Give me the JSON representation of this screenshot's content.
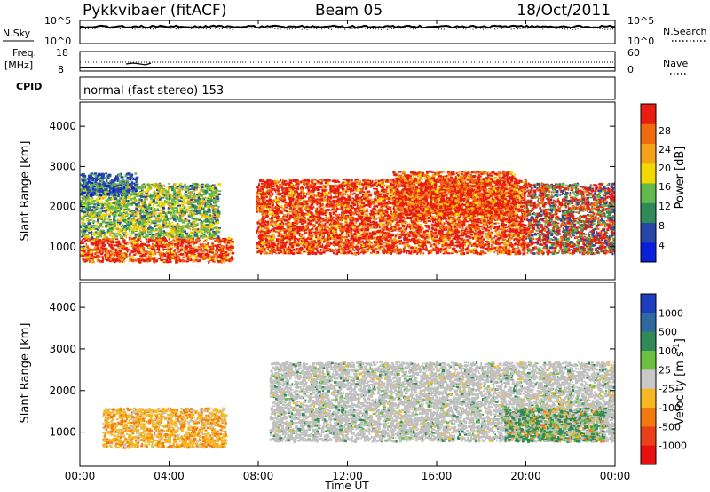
{
  "header": {
    "station": "Pykkvibaer (fitACF)",
    "beam": "Beam 05",
    "date": "18/Oct/2011"
  },
  "top_panels": {
    "nsky_label": "N.Sky",
    "nsky_ticks": [
      "10^5",
      "10^0"
    ],
    "nsearch_label": "N.Search",
    "nsearch_ticks": [
      "10^5",
      "10^0"
    ],
    "freq_label": "Freq.",
    "freq_unit": "[MHz]",
    "freq_ticks": [
      "18",
      "8"
    ],
    "nave_label": "Nave",
    "nave_ticks": [
      "60",
      "0"
    ],
    "cpid_label": "CPID",
    "cpid_text": "normal (fast stereo) 153"
  },
  "chart_data": [
    {
      "type": "heatmap",
      "name": "Power",
      "ylabel": "Slant Range [km]",
      "xlabel": "",
      "ylim": [
        180,
        4600
      ],
      "xlim": [
        0,
        24
      ],
      "y_ticks": [
        "1000",
        "2000",
        "3000",
        "4000"
      ],
      "y_tick_values": [
        1000,
        2000,
        3000,
        4000
      ],
      "colorbar": {
        "label": "Power [dB]",
        "ticks": [
          "28",
          "24",
          "20",
          "16",
          "12",
          "8",
          "4"
        ],
        "colors_low_to_high": [
          "#0a1fd9",
          "#2846a8",
          "#2f8a58",
          "#63b84e",
          "#f0d800",
          "#f3a21a",
          "#f06a10",
          "#e81c10"
        ]
      },
      "echo_regions": [
        {
          "t": [
            0.0,
            6.8
          ],
          "range": [
            650,
            1250
          ],
          "level": "high"
        },
        {
          "t": [
            0.0,
            6.2
          ],
          "range": [
            1250,
            2600
          ],
          "level": "medium"
        },
        {
          "t": [
            0.0,
            2.5
          ],
          "range": [
            2300,
            2850
          ],
          "level": "low"
        },
        {
          "t": [
            7.9,
            20.0
          ],
          "range": [
            850,
            2700
          ],
          "level": "high"
        },
        {
          "t": [
            14.0,
            19.5
          ],
          "range": [
            1800,
            2900
          ],
          "level": "high"
        },
        {
          "t": [
            20.0,
            24.0
          ],
          "range": [
            850,
            2600
          ],
          "level": "mixed"
        }
      ]
    },
    {
      "type": "heatmap",
      "name": "Velocity",
      "ylabel": "Slant Range [km]",
      "xlabel": "Time UT",
      "ylim": [
        180,
        4600
      ],
      "xlim": [
        0,
        24
      ],
      "y_ticks": [
        "1000",
        "2000",
        "3000",
        "4000"
      ],
      "y_tick_values": [
        1000,
        2000,
        3000,
        4000
      ],
      "x_ticks": [
        "00:00",
        "04:00",
        "08:00",
        "12:00",
        "16:00",
        "20:00",
        "00:00"
      ],
      "x_tick_values": [
        0,
        4,
        8,
        12,
        16,
        20,
        24
      ],
      "colorbar": {
        "label": "Velocity [m s^-1]",
        "label_main": "Velocity",
        "label_unit": "[m s",
        "label_exp": "-1",
        "label_close": "]",
        "ticks": [
          "1000",
          "500",
          "100",
          "25",
          "-25",
          "-100",
          "-500",
          "-1000"
        ],
        "colors_high_to_low": [
          "#1d3fbf",
          "#2e6a9f",
          "#2f8a58",
          "#6cc040",
          "#c8c8c8",
          "#f5b820",
          "#f37a10",
          "#e8401a",
          "#e81010"
        ]
      },
      "ground_scatter_color": "#c0c0c0",
      "echo_regions": [
        {
          "t": [
            1.0,
            6.5
          ],
          "range": [
            650,
            1600
          ],
          "level": "away"
        },
        {
          "t": [
            8.5,
            24.0
          ],
          "range": [
            800,
            2700
          ],
          "level": "ground"
        },
        {
          "t": [
            19.0,
            23.5
          ],
          "range": [
            800,
            1600
          ],
          "level": "toward"
        }
      ]
    }
  ]
}
